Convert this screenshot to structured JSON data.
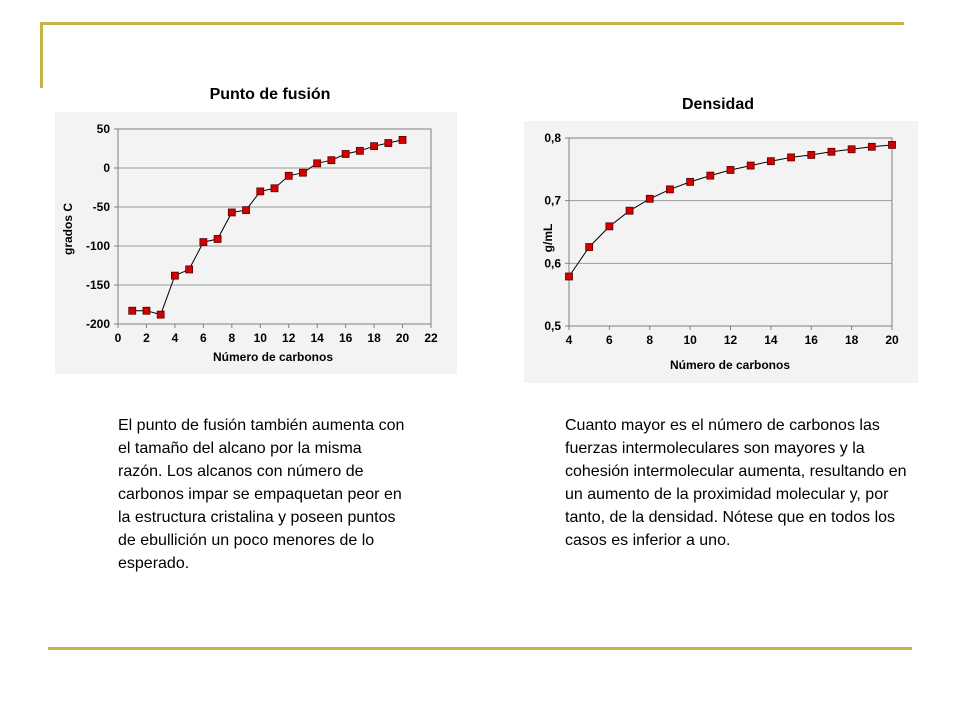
{
  "slide": {
    "accent_color": "#c8b44a",
    "left_text": "El punto de fusión también aumenta con el tamaño del alcano por la misma razón. Los alcanos con número de carbonos impar se empaquetan peor en la estructura cristalina y poseen puntos de ebullición un poco menores de lo esperado.",
    "right_text": "Cuanto mayor es el número de carbonos las fuerzas intermoleculares son mayores y la cohesión intermolecular aumenta, resultando en un aumento de la proximidad molecular y, por tanto, de la densidad. Nótese que en todos los casos es inferior a uno."
  },
  "chart_data": [
    {
      "type": "line",
      "title": "Punto de fusión",
      "xlabel": "Número de carbonos",
      "ylabel": "grados C",
      "xlim": [
        0,
        22
      ],
      "ylim": [
        -200,
        50
      ],
      "xticks": [
        0,
        2,
        4,
        6,
        8,
        10,
        12,
        14,
        16,
        18,
        20,
        22
      ],
      "yticks": [
        50,
        0,
        -50,
        -100,
        -150,
        -200
      ],
      "grid": true,
      "marker_color": "#d40000",
      "line_color": "#000000",
      "x": [
        1,
        2,
        3,
        4,
        5,
        6,
        7,
        8,
        9,
        10,
        11,
        12,
        13,
        14,
        15,
        16,
        17,
        18,
        19,
        20
      ],
      "y": [
        -183,
        -183,
        -188,
        -138,
        -130,
        -95,
        -91,
        -57,
        -54,
        -30,
        -26,
        -10,
        -6,
        6,
        10,
        18,
        22,
        28,
        32,
        36
      ]
    },
    {
      "type": "line",
      "title": "Densidad",
      "xlabel": "Número de carbonos",
      "ylabel": "g/mL",
      "xlim": [
        4,
        20
      ],
      "ylim": [
        0.5,
        0.8
      ],
      "xticks": [
        "4",
        "6",
        "8",
        "10",
        "12",
        "14",
        "16",
        "18",
        "20"
      ],
      "yticks": [
        "0,8",
        "0,7",
        "0,6",
        "0,5"
      ],
      "grid": true,
      "marker_color": "#d40000",
      "line_color": "#000000",
      "x": [
        4,
        5,
        6,
        7,
        8,
        9,
        10,
        11,
        12,
        13,
        14,
        15,
        16,
        17,
        18,
        19,
        20
      ],
      "y": [
        0.579,
        0.626,
        0.659,
        0.684,
        0.703,
        0.718,
        0.73,
        0.74,
        0.749,
        0.756,
        0.763,
        0.769,
        0.773,
        0.778,
        0.782,
        0.786,
        0.789
      ]
    }
  ]
}
